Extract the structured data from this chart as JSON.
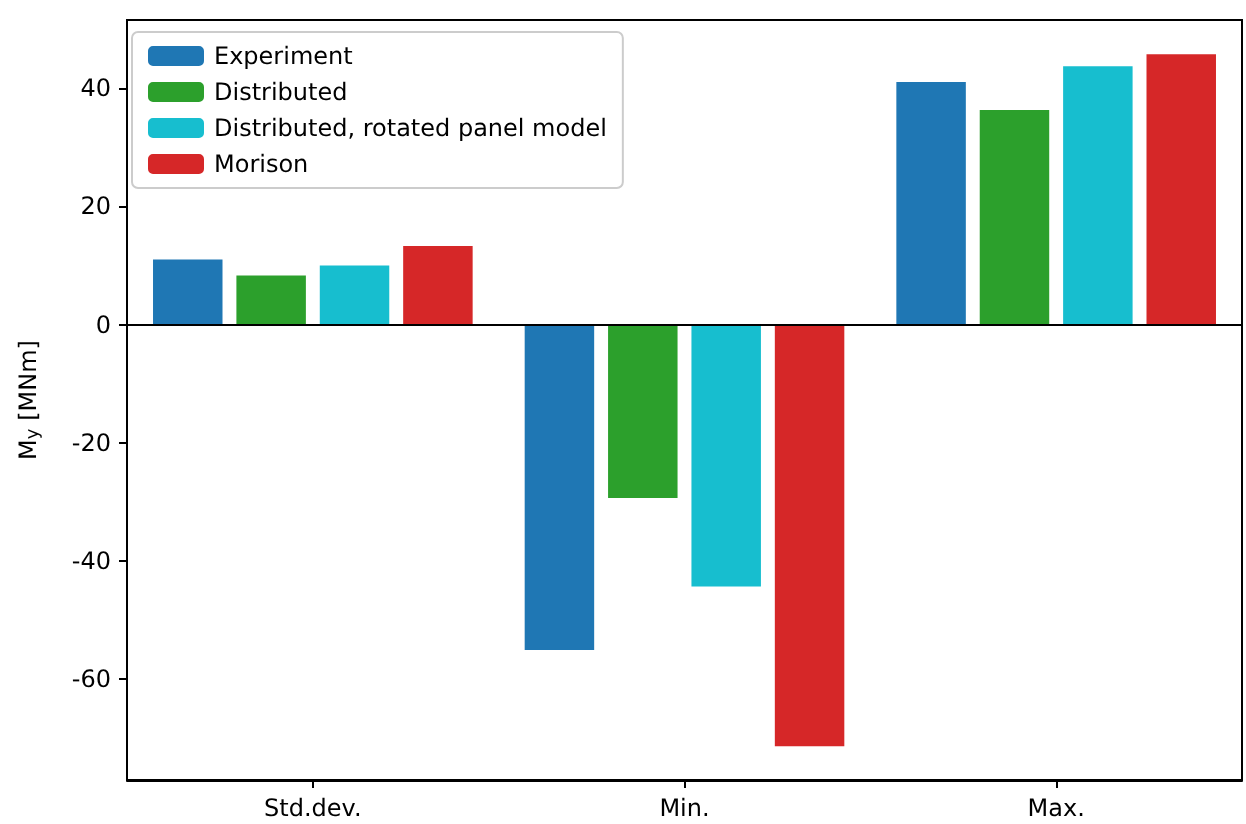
{
  "chart_data": {
    "type": "bar",
    "ylabel": "M$_{y}$ [MNm]",
    "categories": [
      "Std.dev.",
      "Min.",
      "Max."
    ],
    "series": [
      {
        "name": "Experiment",
        "color": "#1f77b4",
        "values": [
          11,
          -55,
          41
        ]
      },
      {
        "name": "Distributed",
        "color": "#2ca02c",
        "values": [
          8.3,
          -29.3,
          36.3
        ]
      },
      {
        "name": "Distributed, rotated panel model",
        "color": "#17becf",
        "values": [
          10,
          -44.3,
          43.7
        ]
      },
      {
        "name": "Morison",
        "color": "#d62728",
        "values": [
          13.3,
          -71.3,
          45.7
        ]
      }
    ],
    "ylim": [
      -77,
      51.5
    ],
    "yticks": [
      -60,
      -40,
      -20,
      0,
      20,
      40
    ],
    "grid": false,
    "legend": "top left",
    "ref_lines": [
      {
        "axis": "y",
        "value": 0,
        "color": "#000000"
      }
    ]
  }
}
